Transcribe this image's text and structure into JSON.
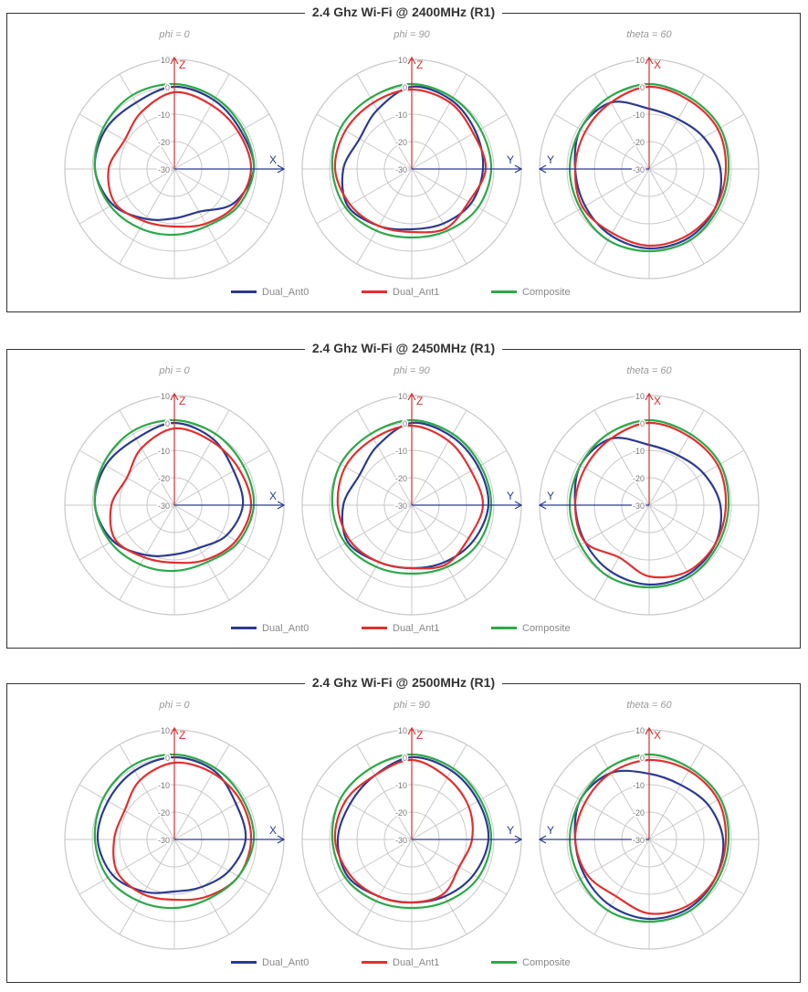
{
  "legend": [
    {
      "name": "Dual_Ant0",
      "color": "#2a3b8f"
    },
    {
      "name": "Dual_Ant1",
      "color": "#e03030"
    },
    {
      "name": "Composite",
      "color": "#2ea84a"
    }
  ],
  "chart_data": [
    {
      "type": "polar",
      "title": "2.4 Ghz Wi-Fi @ 2400MHz (R1)",
      "rlim": [
        -30,
        10
      ],
      "rticks": [
        10,
        0,
        -10,
        -20,
        -30
      ],
      "subplots": [
        {
          "title": "phi = 0",
          "axis_up": "Z",
          "axis_side": "X",
          "side_dir": "right",
          "theta_deg": [
            0,
            30,
            60,
            90,
            120,
            150,
            180,
            210,
            240,
            270,
            300,
            330
          ],
          "series": [
            {
              "name": "Dual_Ant0",
              "values": [
                0,
                -1,
                -2,
                -1,
                -5,
                -12,
                -12,
                -9,
                -4,
                -1,
                -1,
                -2
              ]
            },
            {
              "name": "Dual_Ant1",
              "values": [
                -2,
                -3,
                -3,
                -2,
                -4,
                -7,
                -9,
                -8,
                -5,
                -6,
                -9,
                -6
              ]
            },
            {
              "name": "Composite",
              "values": [
                1,
                0,
                -1,
                -1,
                -3,
                -6,
                -6,
                -5,
                -3,
                -1,
                0,
                1
              ]
            }
          ]
        },
        {
          "title": "phi = 90",
          "axis_up": "Z",
          "axis_side": "Y",
          "side_dir": "right",
          "theta_deg": [
            0,
            30,
            60,
            90,
            120,
            150,
            180,
            210,
            240,
            270,
            300,
            330
          ],
          "series": [
            {
              "name": "Dual_Ant0",
              "values": [
                0,
                -1,
                -3,
                -4,
                -5,
                -7,
                -8,
                -6,
                -3,
                -5,
                -8,
                -5
              ]
            },
            {
              "name": "Dual_Ant1",
              "values": [
                -1,
                -2,
                -4,
                -3,
                -6,
                -5,
                -7,
                -6,
                -4,
                -2,
                -2,
                -2
              ]
            },
            {
              "name": "Composite",
              "values": [
                1,
                0,
                -1,
                -1,
                -2,
                -4,
                -5,
                -4,
                -2,
                -1,
                0,
                0
              ]
            }
          ]
        },
        {
          "title": "theta = 60",
          "axis_up": "X",
          "axis_side": "Y",
          "side_dir": "left",
          "theta_deg": [
            0,
            30,
            60,
            90,
            120,
            150,
            180,
            210,
            240,
            270,
            300,
            330
          ],
          "series": [
            {
              "name": "Dual_Ant0",
              "values": [
                -8,
                -9,
                -7,
                -4,
                -2,
                -1,
                -1,
                -2,
                -3,
                -3,
                -1,
                -2
              ]
            },
            {
              "name": "Dual_Ant1",
              "values": [
                0,
                -1,
                -1,
                -2,
                -2,
                -2,
                -2,
                -3,
                -2,
                -3,
                -3,
                -2
              ]
            },
            {
              "name": "Composite",
              "values": [
                1,
                0,
                0,
                -1,
                -1,
                0,
                0,
                0,
                -1,
                -1,
                -1,
                0
              ]
            }
          ]
        }
      ]
    },
    {
      "type": "polar",
      "title": "2.4 Ghz Wi-Fi @ 2450MHz (R1)",
      "rlim": [
        -30,
        10
      ],
      "rticks": [
        10,
        0,
        -10,
        -20,
        -30
      ],
      "subplots": [
        {
          "title": "phi = 0",
          "axis_up": "Z",
          "axis_side": "X",
          "side_dir": "right",
          "theta_deg": [
            0,
            30,
            60,
            90,
            120,
            150,
            180,
            210,
            240,
            270,
            300,
            330
          ],
          "series": [
            {
              "name": "Dual_Ant0",
              "values": [
                0,
                -2,
                -5,
                -5,
                -8,
                -12,
                -12,
                -9,
                -4,
                -1,
                -1,
                -2
              ]
            },
            {
              "name": "Dual_Ant1",
              "values": [
                -2,
                -3,
                -3,
                -2,
                -4,
                -7,
                -9,
                -8,
                -5,
                -7,
                -10,
                -6
              ]
            },
            {
              "name": "Composite",
              "values": [
                1,
                0,
                -1,
                -1,
                -3,
                -6,
                -6,
                -5,
                -3,
                -1,
                0,
                1
              ]
            }
          ]
        },
        {
          "title": "phi = 90",
          "axis_up": "Z",
          "axis_side": "Y",
          "side_dir": "right",
          "theta_deg": [
            0,
            30,
            60,
            90,
            120,
            150,
            180,
            210,
            240,
            270,
            300,
            330
          ],
          "series": [
            {
              "name": "Dual_Ant0",
              "values": [
                0,
                -1,
                -2,
                -2,
                -4,
                -6,
                -7,
                -6,
                -3,
                -5,
                -8,
                -5
              ]
            },
            {
              "name": "Dual_Ant1",
              "values": [
                -1,
                -3,
                -5,
                -4,
                -6,
                -5,
                -7,
                -6,
                -4,
                -3,
                -2,
                -2
              ]
            },
            {
              "name": "Composite",
              "values": [
                1,
                0,
                -1,
                -1,
                -2,
                -4,
                -5,
                -4,
                -2,
                -1,
                0,
                0
              ]
            }
          ]
        },
        {
          "title": "theta = 60",
          "axis_up": "X",
          "axis_side": "Y",
          "side_dir": "left",
          "theta_deg": [
            0,
            30,
            60,
            90,
            120,
            150,
            180,
            210,
            240,
            270,
            300,
            330
          ],
          "series": [
            {
              "name": "Dual_Ant0",
              "values": [
                -8,
                -9,
                -7,
                -4,
                -2,
                -1,
                -1,
                -2,
                -3,
                -3,
                -1,
                -2
              ]
            },
            {
              "name": "Dual_Ant1",
              "values": [
                0,
                -1,
                -1,
                -2,
                -2,
                -2,
                -4,
                -8,
                -3,
                -3,
                -3,
                -2
              ]
            },
            {
              "name": "Composite",
              "values": [
                1,
                0,
                0,
                -1,
                -1,
                0,
                0,
                0,
                -1,
                -1,
                -1,
                0
              ]
            }
          ]
        }
      ]
    },
    {
      "type": "polar",
      "title": "2.4 Ghz Wi-Fi @ 2500MHz (R1)",
      "rlim": [
        -30,
        10
      ],
      "rticks": [
        10,
        0,
        -10,
        -20,
        -30
      ],
      "subplots": [
        {
          "title": "phi = 0",
          "axis_up": "Z",
          "axis_side": "X",
          "side_dir": "right",
          "theta_deg": [
            0,
            30,
            60,
            90,
            120,
            150,
            180,
            210,
            240,
            270,
            300,
            330
          ],
          "series": [
            {
              "name": "Dual_Ant0",
              "values": [
                0,
                -1,
                -4,
                -4,
                -7,
                -10,
                -11,
                -8,
                -4,
                -2,
                -2,
                -1
              ]
            },
            {
              "name": "Dual_Ant1",
              "values": [
                -2,
                -2,
                -2,
                -2,
                -3,
                -6,
                -8,
                -7,
                -6,
                -8,
                -9,
                -5
              ]
            },
            {
              "name": "Composite",
              "values": [
                1,
                0,
                -1,
                -1,
                -3,
                -5,
                -5,
                -4,
                -2,
                -1,
                0,
                1
              ]
            }
          ]
        },
        {
          "title": "phi = 90",
          "axis_up": "Z",
          "axis_side": "Y",
          "side_dir": "right",
          "theta_deg": [
            0,
            30,
            60,
            90,
            120,
            150,
            180,
            210,
            240,
            270,
            300,
            330
          ],
          "series": [
            {
              "name": "Dual_Ant0",
              "values": [
                0,
                -1,
                -2,
                -2,
                -4,
                -6,
                -7,
                -6,
                -3,
                -3,
                -4,
                -3
              ]
            },
            {
              "name": "Dual_Ant1",
              "values": [
                -1,
                -4,
                -6,
                -8,
                -10,
                -7,
                -7,
                -6,
                -4,
                -2,
                -2,
                -3
              ]
            },
            {
              "name": "Composite",
              "values": [
                1,
                0,
                -1,
                -1,
                -2,
                -4,
                -5,
                -4,
                -2,
                -1,
                0,
                0
              ]
            }
          ]
        },
        {
          "title": "theta = 60",
          "axis_up": "X",
          "axis_side": "Y",
          "side_dir": "left",
          "theta_deg": [
            0,
            30,
            60,
            90,
            120,
            150,
            180,
            210,
            240,
            270,
            300,
            330
          ],
          "series": [
            {
              "name": "Dual_Ant0",
              "values": [
                -6,
                -7,
                -5,
                -3,
                -2,
                -1,
                -1,
                -2,
                -3,
                -3,
                -1,
                -2
              ]
            },
            {
              "name": "Dual_Ant1",
              "values": [
                -1,
                -1,
                -1,
                -2,
                -2,
                -2,
                -3,
                -6,
                -4,
                -3,
                -3,
                -2
              ]
            },
            {
              "name": "Composite",
              "values": [
                1,
                0,
                0,
                -1,
                -1,
                0,
                0,
                0,
                -1,
                -1,
                -1,
                0
              ]
            }
          ]
        }
      ]
    }
  ]
}
